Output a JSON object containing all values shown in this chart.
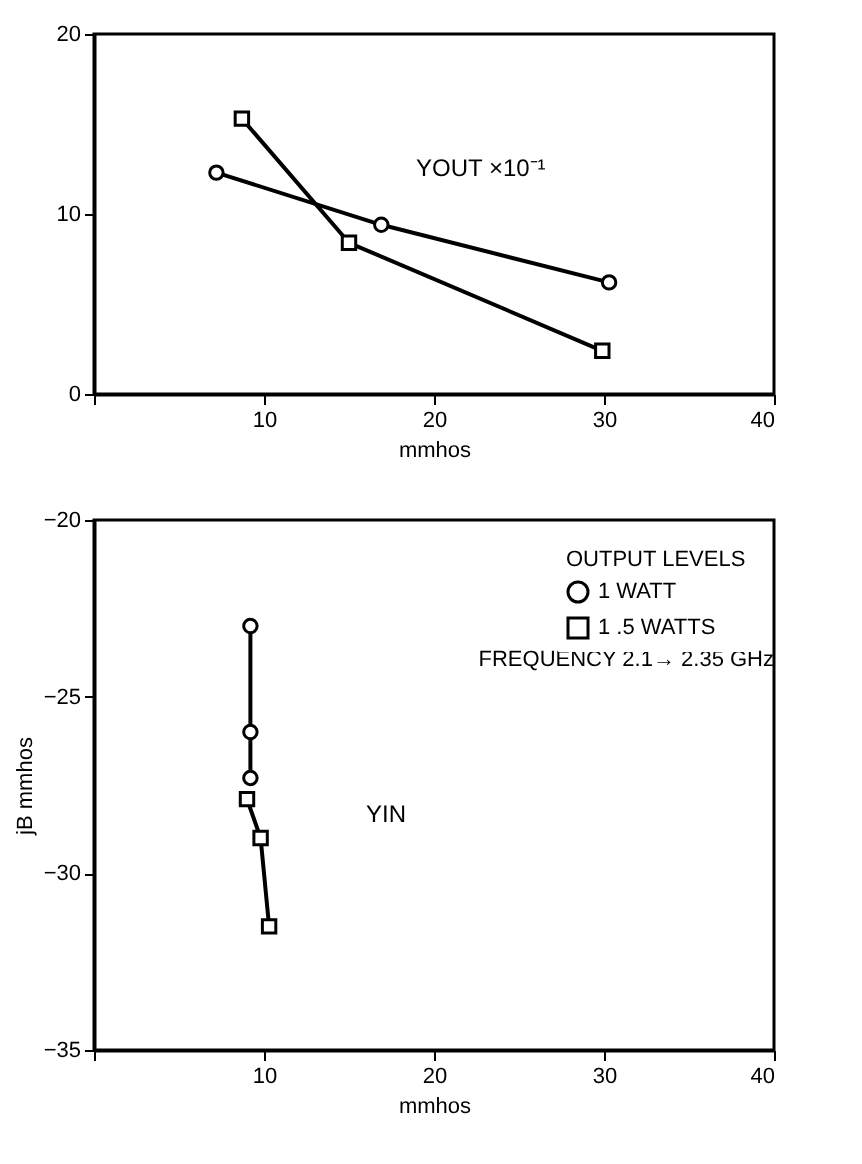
{
  "chart_data": [
    {
      "type": "line",
      "xlabel": "mmhos",
      "xlim": [
        0,
        40
      ],
      "xticks": [
        {
          "value": 0,
          "label": null
        },
        10,
        20,
        30,
        40
      ],
      "ylim": [
        0,
        20
      ],
      "yticks": [
        0,
        10,
        20
      ],
      "grid": false,
      "annotations": [
        "YOUT ×10⁻¹"
      ],
      "series": [
        {
          "color": "#000000",
          "marker": "circle",
          "x": [
            7.2,
            16.9,
            30.3
          ],
          "values": [
            12.3,
            9.4,
            6.2
          ]
        },
        {
          "color": "#000000",
          "marker": "square",
          "x": [
            8.7,
            15.0,
            29.9
          ],
          "values": [
            15.3,
            8.4,
            2.4
          ]
        }
      ]
    },
    {
      "type": "line",
      "xlabel": "mmhos",
      "ylabel": "jB mmhos",
      "legend_title": "OUTPUT LEVELS",
      "xlim": [
        0,
        40
      ],
      "xticks": [
        {
          "value": 0,
          "label": null
        },
        10,
        20,
        30,
        40
      ],
      "ylim": [
        -35,
        -20
      ],
      "yticks": [
        -35,
        -30,
        -25,
        -20
      ],
      "grid": false,
      "legend": "top right",
      "annotations": [
        "YIN",
        "FREQUENCY  2.1→ 2.35 GHz"
      ],
      "series": [
        {
          "name": "1 WATT",
          "color": "#000000",
          "marker": "circle",
          "x": [
            9.2,
            9.2,
            9.2
          ],
          "values": [
            -23.0,
            -26.0,
            -27.3
          ]
        },
        {
          "name": "1 .5 WATTS",
          "color": "#000000",
          "marker": "square",
          "x": [
            9.0,
            9.8,
            10.3
          ],
          "values": [
            -27.9,
            -29.0,
            -31.5
          ]
        }
      ]
    }
  ]
}
